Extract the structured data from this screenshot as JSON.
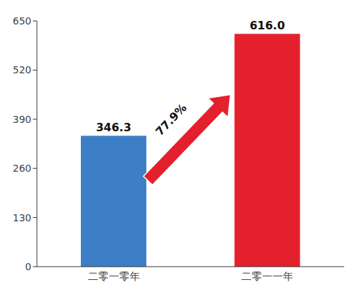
{
  "chart_data": {
    "type": "bar",
    "categories": [
      "二零一零年",
      "二零一一年"
    ],
    "values": [
      346.3,
      616.0
    ],
    "value_labels": [
      "346.3",
      "616.0"
    ],
    "colors": [
      "#3d7fc6",
      "#e3202c"
    ],
    "ylim": [
      0,
      650
    ],
    "yticks": [
      0,
      130,
      260,
      390,
      520,
      650
    ],
    "grid": false,
    "data_labels": true,
    "annotation": "77.9%"
  }
}
